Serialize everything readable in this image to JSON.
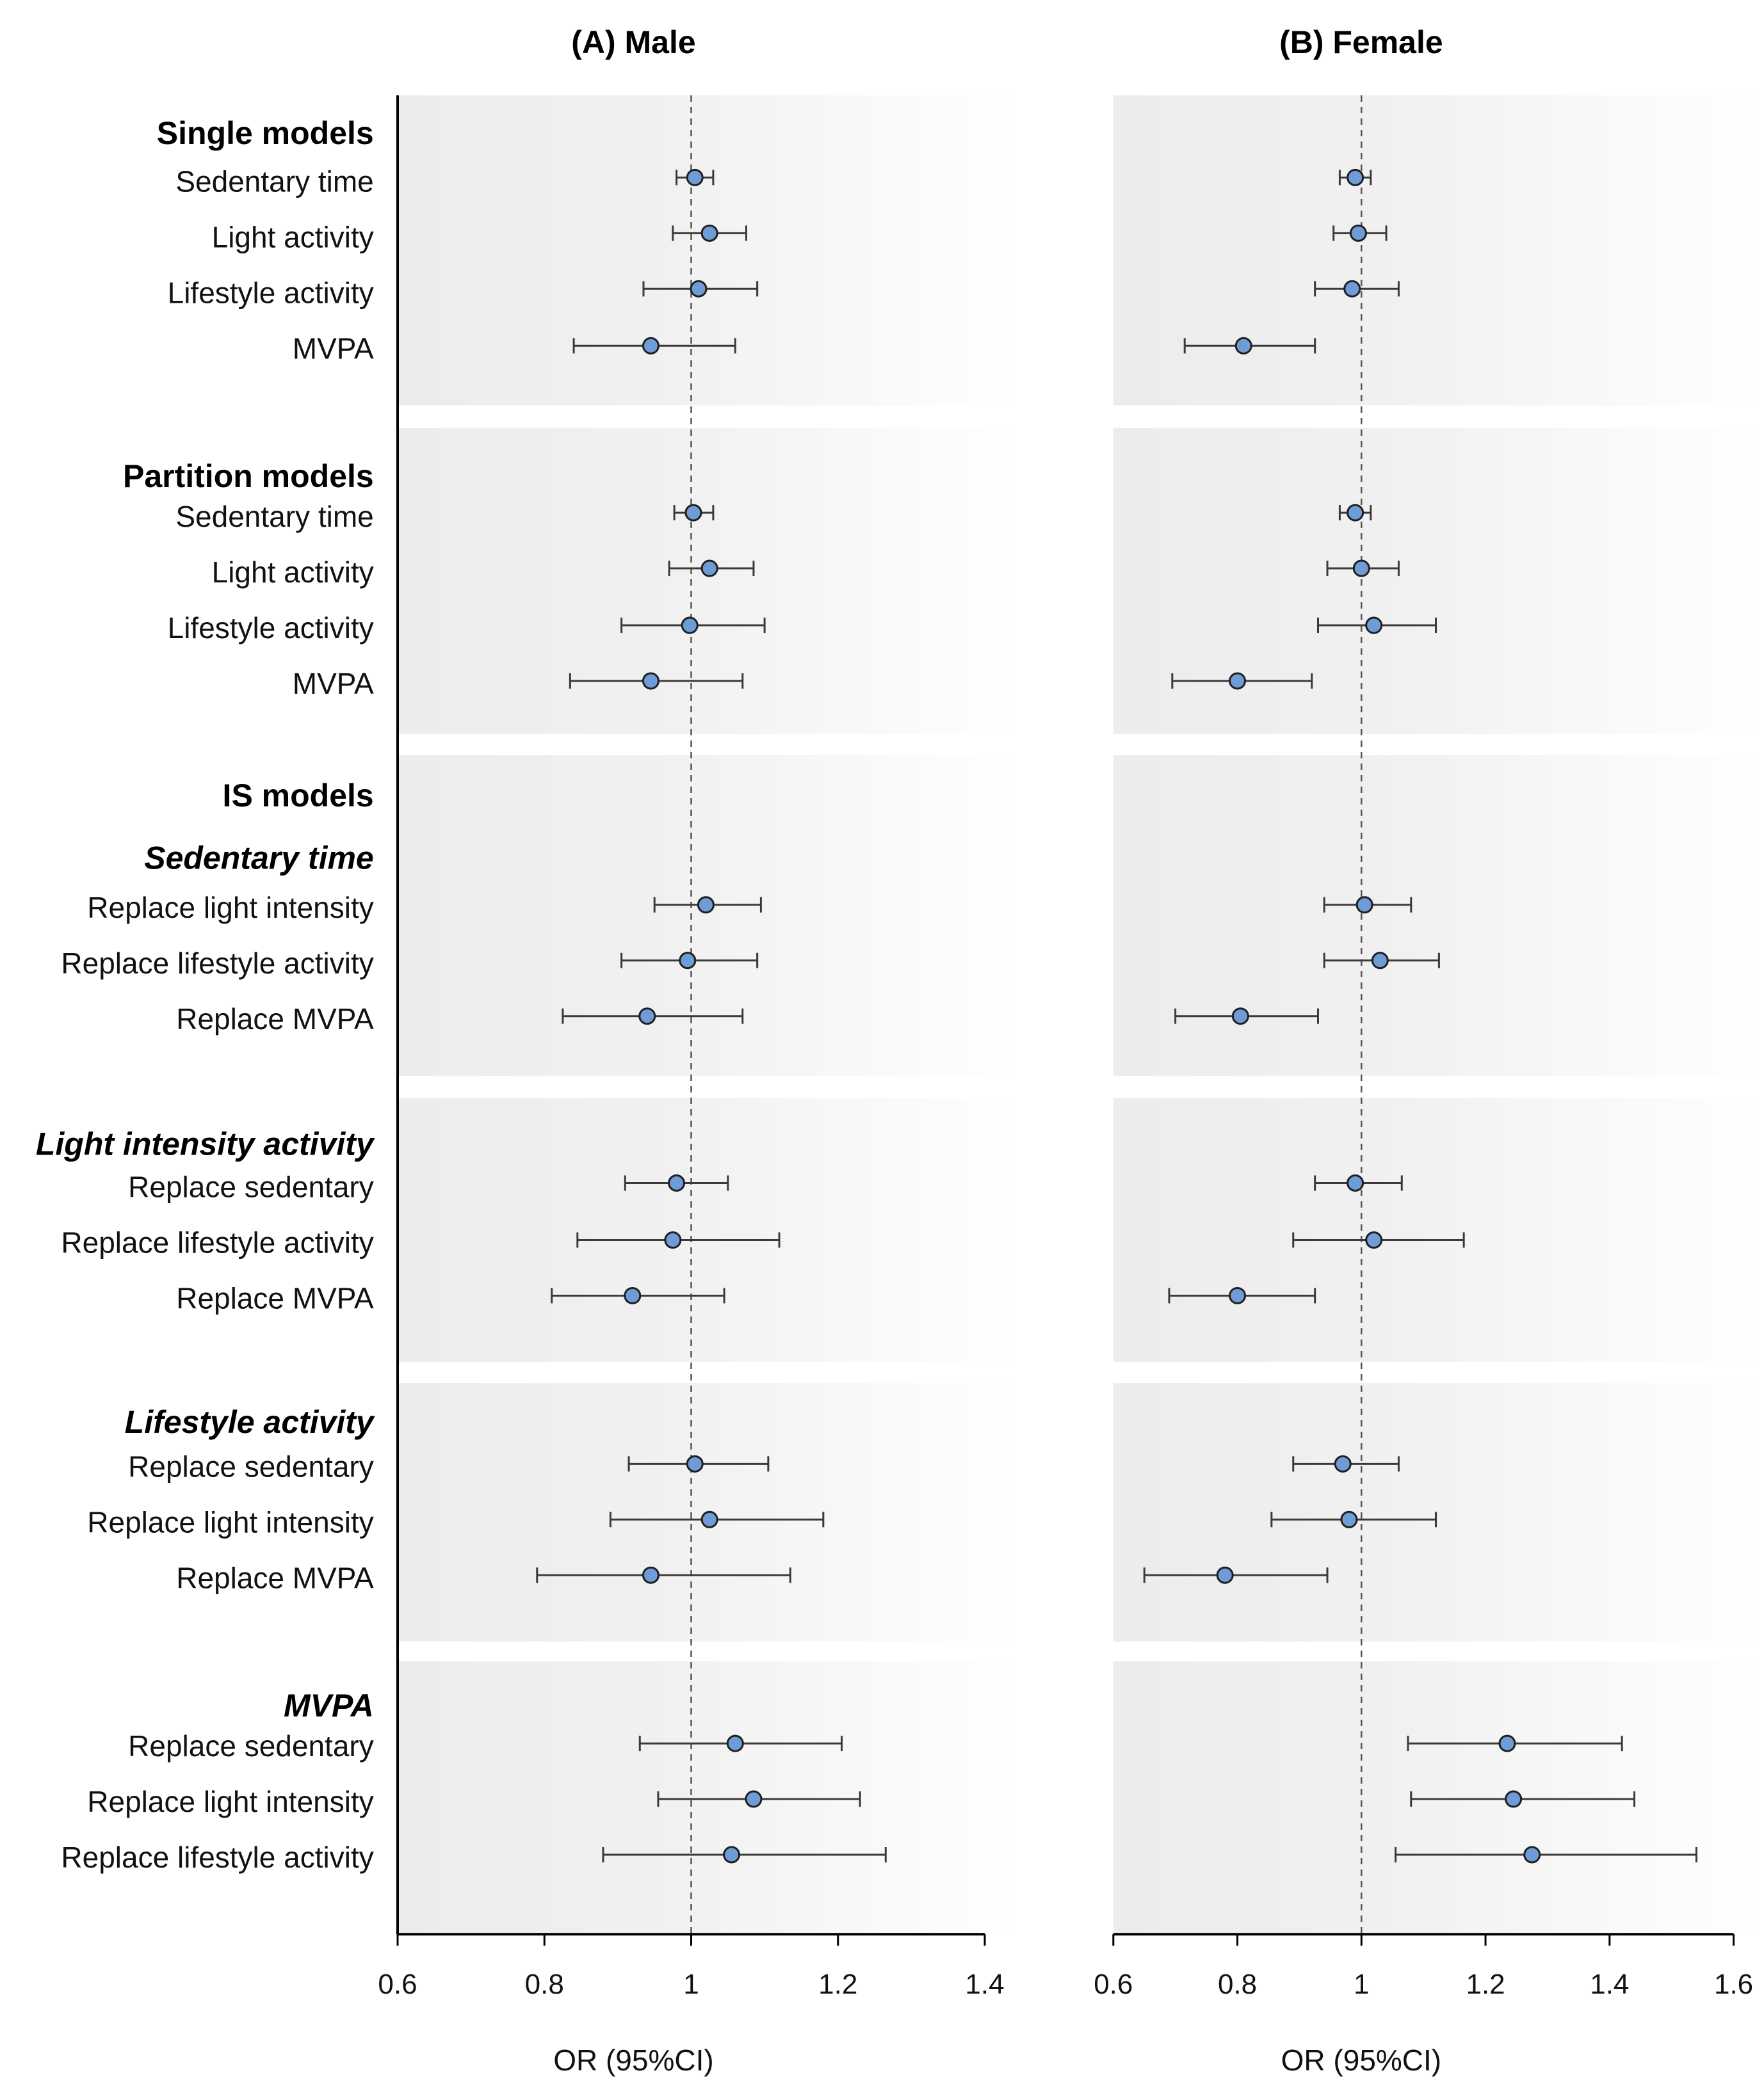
{
  "chart_data": {
    "type": "forest",
    "xlabel": "OR (95%CI)",
    "labels": [
      {
        "text": "Single models",
        "style": "group"
      },
      {
        "text": "Sedentary time",
        "style": "row"
      },
      {
        "text": "Light activity",
        "style": "row"
      },
      {
        "text": "Lifestyle activity",
        "style": "row"
      },
      {
        "text": "MVPA",
        "style": "row"
      },
      {
        "text": "Partition models",
        "style": "group"
      },
      {
        "text": "Sedentary time",
        "style": "row"
      },
      {
        "text": "Light activity",
        "style": "row"
      },
      {
        "text": "Lifestyle activity",
        "style": "row"
      },
      {
        "text": "MVPA",
        "style": "row"
      },
      {
        "text": "IS models",
        "style": "group"
      },
      {
        "text": "Sedentary time",
        "style": "sub"
      },
      {
        "text": "Replace light intensity",
        "style": "row"
      },
      {
        "text": "Replace lifestyle activity",
        "style": "row"
      },
      {
        "text": "Replace MVPA",
        "style": "row"
      },
      {
        "text": "Light intensity activity",
        "style": "sub"
      },
      {
        "text": "Replace sedentary",
        "style": "row"
      },
      {
        "text": "Replace lifestyle activity",
        "style": "row"
      },
      {
        "text": "Replace MVPA",
        "style": "row"
      },
      {
        "text": "Lifestyle activity",
        "style": "sub"
      },
      {
        "text": "Replace sedentary",
        "style": "row"
      },
      {
        "text": "Replace light intensity",
        "style": "row"
      },
      {
        "text": "Replace MVPA",
        "style": "row"
      },
      {
        "text": "MVPA",
        "style": "sub"
      },
      {
        "text": "Replace sedentary",
        "style": "row"
      },
      {
        "text": "Replace light intensity",
        "style": "row"
      },
      {
        "text": "Replace lifestyle activity",
        "style": "row"
      }
    ],
    "panels": [
      {
        "title": "(A) Male",
        "xlim": [
          0.6,
          1.4
        ],
        "xticks": [
          "0.6",
          "0.8",
          "1",
          "1.2",
          "1.4"
        ],
        "reference": 1,
        "estimates": [
          {
            "or": 1.005,
            "lo": 0.98,
            "hi": 1.03
          },
          {
            "or": 1.025,
            "lo": 0.975,
            "hi": 1.075
          },
          {
            "or": 1.01,
            "lo": 0.935,
            "hi": 1.09
          },
          {
            "or": 0.945,
            "lo": 0.84,
            "hi": 1.06
          },
          {
            "or": 1.003,
            "lo": 0.977,
            "hi": 1.03
          },
          {
            "or": 1.025,
            "lo": 0.97,
            "hi": 1.085
          },
          {
            "or": 0.998,
            "lo": 0.905,
            "hi": 1.1
          },
          {
            "or": 0.945,
            "lo": 0.835,
            "hi": 1.07
          },
          {
            "or": 1.02,
            "lo": 0.95,
            "hi": 1.095
          },
          {
            "or": 0.995,
            "lo": 0.905,
            "hi": 1.09
          },
          {
            "or": 0.94,
            "lo": 0.825,
            "hi": 1.07
          },
          {
            "or": 0.98,
            "lo": 0.91,
            "hi": 1.05
          },
          {
            "or": 0.975,
            "lo": 0.845,
            "hi": 1.12
          },
          {
            "or": 0.92,
            "lo": 0.81,
            "hi": 1.045
          },
          {
            "or": 1.005,
            "lo": 0.915,
            "hi": 1.105
          },
          {
            "or": 1.025,
            "lo": 0.89,
            "hi": 1.18
          },
          {
            "or": 0.945,
            "lo": 0.79,
            "hi": 1.135
          },
          {
            "or": 1.06,
            "lo": 0.93,
            "hi": 1.205
          },
          {
            "or": 1.085,
            "lo": 0.955,
            "hi": 1.23
          },
          {
            "or": 1.055,
            "lo": 0.88,
            "hi": 1.265
          }
        ]
      },
      {
        "title": "(B) Female",
        "xlim": [
          0.6,
          1.6
        ],
        "xticks": [
          "0.6",
          "0.8",
          "1",
          "1.2",
          "1.4",
          "1.6"
        ],
        "reference": 1,
        "estimates": [
          {
            "or": 0.99,
            "lo": 0.965,
            "hi": 1.015
          },
          {
            "or": 0.995,
            "lo": 0.955,
            "hi": 1.04
          },
          {
            "or": 0.985,
            "lo": 0.925,
            "hi": 1.06
          },
          {
            "or": 0.81,
            "lo": 0.715,
            "hi": 0.925
          },
          {
            "or": 0.99,
            "lo": 0.965,
            "hi": 1.015
          },
          {
            "or": 1.0,
            "lo": 0.945,
            "hi": 1.06
          },
          {
            "or": 1.02,
            "lo": 0.93,
            "hi": 1.12
          },
          {
            "or": 0.8,
            "lo": 0.695,
            "hi": 0.92
          },
          {
            "or": 1.005,
            "lo": 0.94,
            "hi": 1.08
          },
          {
            "or": 1.03,
            "lo": 0.94,
            "hi": 1.125
          },
          {
            "or": 0.805,
            "lo": 0.7,
            "hi": 0.93
          },
          {
            "or": 0.99,
            "lo": 0.925,
            "hi": 1.065
          },
          {
            "or": 1.02,
            "lo": 0.89,
            "hi": 1.165
          },
          {
            "or": 0.8,
            "lo": 0.69,
            "hi": 0.925
          },
          {
            "or": 0.97,
            "lo": 0.89,
            "hi": 1.06
          },
          {
            "or": 0.98,
            "lo": 0.855,
            "hi": 1.12
          },
          {
            "or": 0.78,
            "lo": 0.65,
            "hi": 0.945
          },
          {
            "or": 1.235,
            "lo": 1.075,
            "hi": 1.42
          },
          {
            "or": 1.245,
            "lo": 1.08,
            "hi": 1.44
          },
          {
            "or": 1.275,
            "lo": 1.055,
            "hi": 1.54
          }
        ]
      }
    ]
  }
}
